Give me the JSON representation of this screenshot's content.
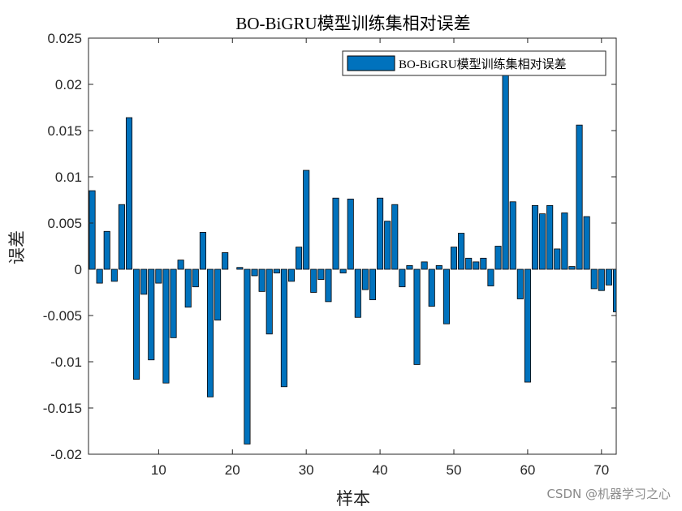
{
  "chart_data": {
    "type": "bar",
    "title": "BO-BiGRU模型训练集相对误差",
    "xlabel": "样本",
    "ylabel": "误差",
    "xlim": [
      0.5,
      72
    ],
    "ylim": [
      -0.02,
      0.025
    ],
    "xticks": [
      10,
      20,
      30,
      40,
      50,
      60,
      70
    ],
    "yticks": [
      -0.02,
      -0.015,
      -0.01,
      -0.005,
      0,
      0.005,
      0.01,
      0.015,
      0.02,
      0.025
    ],
    "ytick_labels": [
      "-0.02",
      "-0.015",
      "-0.01",
      "-0.005",
      "0",
      "0.005",
      "0.01",
      "0.015",
      "0.02",
      "0.025"
    ],
    "xtick_labels": [
      "10",
      "20",
      "30",
      "40",
      "50",
      "60",
      "70"
    ],
    "legend": {
      "position": "top-right",
      "entries": [
        "BO-BiGRU模型训练集相对误差"
      ]
    },
    "grid": false,
    "bar_color": "#0072BD",
    "series": [
      {
        "name": "BO-BiGRU模型训练集相对误差",
        "x": [
          1,
          2,
          3,
          4,
          5,
          6,
          7,
          8,
          9,
          10,
          11,
          12,
          13,
          14,
          15,
          16,
          17,
          18,
          19,
          20,
          21,
          22,
          23,
          24,
          25,
          26,
          27,
          28,
          29,
          30,
          31,
          32,
          33,
          34,
          35,
          36,
          37,
          38,
          39,
          40,
          41,
          42,
          43,
          44,
          45,
          46,
          47,
          48,
          49,
          50,
          51,
          52,
          53,
          54,
          55,
          56,
          57,
          58,
          59,
          60,
          61,
          62,
          63,
          64,
          65,
          66,
          67,
          68,
          69,
          70,
          71,
          72
        ],
        "values": [
          0.0085,
          -0.0015,
          0.0041,
          -0.0013,
          0.007,
          0.0164,
          -0.0119,
          -0.0027,
          -0.0098,
          -0.0015,
          -0.0123,
          -0.0074,
          0.001,
          -0.0041,
          -0.0019,
          0.004,
          -0.0138,
          -0.0055,
          0.0018,
          0,
          0.0002,
          -0.0189,
          -0.0007,
          -0.0024,
          -0.007,
          -0.0004,
          -0.0127,
          -0.0013,
          0.0024,
          0.0107,
          -0.0025,
          -0.0011,
          -0.0035,
          0.0077,
          -0.0004,
          0.0076,
          -0.0052,
          -0.0022,
          -0.0033,
          0.0077,
          0.0052,
          0.007,
          -0.0019,
          0.0004,
          -0.0103,
          0.0008,
          -0.004,
          0.0004,
          -0.0059,
          0.0024,
          0.0039,
          0.0012,
          0.0008,
          0.0012,
          -0.0018,
          0.0025,
          0.0216,
          0.0073,
          -0.0032,
          -0.0122,
          0.0069,
          0.006,
          0.0069,
          0.0022,
          0.0061,
          0.0003,
          0.0156,
          0.0057,
          -0.0021,
          -0.0023,
          -0.0017,
          -0.0046
        ]
      }
    ]
  },
  "watermark": "CSDN @机器学习之心"
}
